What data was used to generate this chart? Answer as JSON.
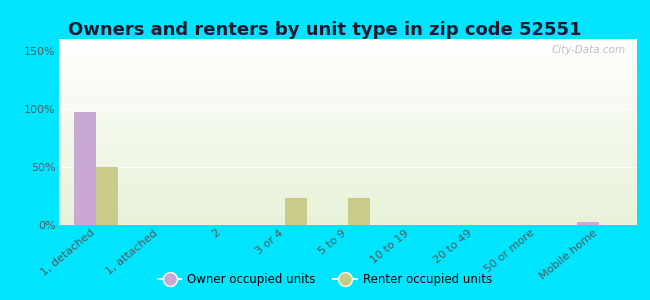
{
  "title": "Owners and renters by unit type in zip code 52551",
  "categories": [
    "1, detached",
    "1, attached",
    "2",
    "3 or 4",
    "5 to 9",
    "10 to 19",
    "20 to 49",
    "50 or more",
    "Mobile home"
  ],
  "owner_values": [
    97,
    0,
    0,
    0,
    0,
    0,
    0,
    0,
    3
  ],
  "renter_values": [
    50,
    0,
    0,
    23,
    23,
    0,
    0,
    0,
    0
  ],
  "owner_color": "#c9a8d4",
  "renter_color": "#c8cc88",
  "ylim": [
    0,
    160
  ],
  "yticks": [
    0,
    50,
    100,
    150
  ],
  "ytick_labels": [
    "0%",
    "50%",
    "100%",
    "150%"
  ],
  "outer_bg": "#00e5ff",
  "title_fontsize": 13,
  "watermark": "City-Data.com",
  "bar_width": 0.35
}
